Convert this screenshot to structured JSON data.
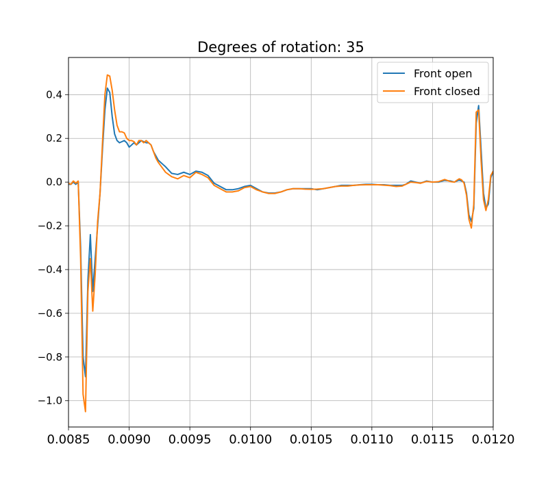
{
  "chart_data": {
    "type": "line",
    "title": "Degrees of rotation: 35",
    "xlabel": "",
    "ylabel": "",
    "xlim": [
      0.0085,
      0.012
    ],
    "ylim": [
      -1.12,
      0.57
    ],
    "grid": true,
    "legend_position": "top-right",
    "x_ticks": [
      0.0085,
      0.009,
      0.0095,
      0.01,
      0.0105,
      0.011,
      0.0115,
      0.012
    ],
    "x_tick_labels": [
      "0.0085",
      "0.0090",
      "0.0095",
      "0.0100",
      "0.0105",
      "0.0110",
      "0.0115",
      "0.0120"
    ],
    "y_ticks": [
      0.4,
      0.2,
      0.0,
      -0.2,
      -0.4,
      -0.6,
      -0.8,
      -1.0
    ],
    "y_tick_labels": [
      "0.4",
      "0.2",
      "0.0",
      "−0.2",
      "−0.4",
      "−0.6",
      "−0.8",
      "−1.0"
    ],
    "series": [
      {
        "name": "Front open",
        "color": "#1f77b4",
        "points": [
          [
            0.0085,
            -0.01
          ],
          [
            0.00852,
            -0.01
          ],
          [
            0.00854,
            0.0
          ],
          [
            0.00856,
            -0.01
          ],
          [
            0.00858,
            0.0
          ],
          [
            0.0086,
            -0.3
          ],
          [
            0.00862,
            -0.8
          ],
          [
            0.00864,
            -0.89
          ],
          [
            0.00866,
            -0.45
          ],
          [
            0.00868,
            -0.24
          ],
          [
            0.0087,
            -0.5
          ],
          [
            0.00872,
            -0.35
          ],
          [
            0.00874,
            -0.2
          ],
          [
            0.00876,
            -0.05
          ],
          [
            0.00878,
            0.15
          ],
          [
            0.0088,
            0.33
          ],
          [
            0.00882,
            0.43
          ],
          [
            0.00884,
            0.41
          ],
          [
            0.00886,
            0.3
          ],
          [
            0.00888,
            0.22
          ],
          [
            0.0089,
            0.19
          ],
          [
            0.00892,
            0.18
          ],
          [
            0.00894,
            0.185
          ],
          [
            0.00896,
            0.19
          ],
          [
            0.00898,
            0.18
          ],
          [
            0.009,
            0.16
          ],
          [
            0.00902,
            0.17
          ],
          [
            0.00904,
            0.18
          ],
          [
            0.00906,
            0.17
          ],
          [
            0.00908,
            0.18
          ],
          [
            0.0091,
            0.19
          ],
          [
            0.00912,
            0.185
          ],
          [
            0.00914,
            0.18
          ],
          [
            0.00916,
            0.18
          ],
          [
            0.00918,
            0.17
          ],
          [
            0.0092,
            0.14
          ],
          [
            0.00922,
            0.12
          ],
          [
            0.00924,
            0.1
          ],
          [
            0.00926,
            0.09
          ],
          [
            0.00928,
            0.08
          ],
          [
            0.0093,
            0.07
          ],
          [
            0.00935,
            0.04
          ],
          [
            0.0094,
            0.035
          ],
          [
            0.00945,
            0.045
          ],
          [
            0.0095,
            0.035
          ],
          [
            0.00955,
            0.05
          ],
          [
            0.0096,
            0.045
          ],
          [
            0.00965,
            0.03
          ],
          [
            0.0097,
            -0.005
          ],
          [
            0.00975,
            -0.02
          ],
          [
            0.0098,
            -0.035
          ],
          [
            0.00985,
            -0.035
          ],
          [
            0.0099,
            -0.03
          ],
          [
            0.00995,
            -0.02
          ],
          [
            0.01,
            -0.015
          ],
          [
            0.01005,
            -0.03
          ],
          [
            0.0101,
            -0.045
          ],
          [
            0.01015,
            -0.05
          ],
          [
            0.0102,
            -0.05
          ],
          [
            0.01025,
            -0.045
          ],
          [
            0.0103,
            -0.035
          ],
          [
            0.01035,
            -0.03
          ],
          [
            0.0104,
            -0.03
          ],
          [
            0.01045,
            -0.03
          ],
          [
            0.0105,
            -0.03
          ],
          [
            0.01055,
            -0.035
          ],
          [
            0.0106,
            -0.03
          ],
          [
            0.01065,
            -0.025
          ],
          [
            0.0107,
            -0.02
          ],
          [
            0.01075,
            -0.015
          ],
          [
            0.0108,
            -0.015
          ],
          [
            0.01085,
            -0.015
          ],
          [
            0.0109,
            -0.012
          ],
          [
            0.01095,
            -0.01
          ],
          [
            0.011,
            -0.01
          ],
          [
            0.01105,
            -0.012
          ],
          [
            0.0111,
            -0.012
          ],
          [
            0.01115,
            -0.015
          ],
          [
            0.0112,
            -0.015
          ],
          [
            0.01125,
            -0.015
          ],
          [
            0.01128,
            -0.01
          ],
          [
            0.01132,
            0.005
          ],
          [
            0.01136,
            0.0
          ],
          [
            0.0114,
            -0.005
          ],
          [
            0.01145,
            0.005
          ],
          [
            0.0115,
            0.0
          ],
          [
            0.01155,
            0.0
          ],
          [
            0.0116,
            0.008
          ],
          [
            0.01165,
            0.005
          ],
          [
            0.01168,
            0.0
          ],
          [
            0.0117,
            0.005
          ],
          [
            0.01172,
            0.01
          ],
          [
            0.01174,
            0.005
          ],
          [
            0.01176,
            0.0
          ],
          [
            0.01178,
            -0.05
          ],
          [
            0.0118,
            -0.15
          ],
          [
            0.01182,
            -0.18
          ],
          [
            0.01184,
            -0.12
          ],
          [
            0.01186,
            0.27
          ],
          [
            0.01188,
            0.35
          ],
          [
            0.0119,
            0.15
          ],
          [
            0.01192,
            -0.05
          ],
          [
            0.01194,
            -0.12
          ],
          [
            0.01196,
            -0.1
          ],
          [
            0.01198,
            0.02
          ],
          [
            0.012,
            0.05
          ]
        ]
      },
      {
        "name": "Front closed",
        "color": "#ff7f0e",
        "points": [
          [
            0.0085,
            -0.005
          ],
          [
            0.00852,
            -0.01
          ],
          [
            0.00854,
            0.005
          ],
          [
            0.00856,
            -0.005
          ],
          [
            0.00858,
            0.005
          ],
          [
            0.0086,
            -0.35
          ],
          [
            0.00862,
            -0.97
          ],
          [
            0.00864,
            -1.05
          ],
          [
            0.00866,
            -0.5
          ],
          [
            0.00868,
            -0.35
          ],
          [
            0.0087,
            -0.59
          ],
          [
            0.00872,
            -0.42
          ],
          [
            0.00874,
            -0.18
          ],
          [
            0.00876,
            -0.05
          ],
          [
            0.00878,
            0.18
          ],
          [
            0.0088,
            0.4
          ],
          [
            0.00882,
            0.49
          ],
          [
            0.00884,
            0.485
          ],
          [
            0.00886,
            0.42
          ],
          [
            0.00888,
            0.33
          ],
          [
            0.0089,
            0.26
          ],
          [
            0.00892,
            0.23
          ],
          [
            0.00894,
            0.23
          ],
          [
            0.00896,
            0.225
          ],
          [
            0.00898,
            0.2
          ],
          [
            0.009,
            0.19
          ],
          [
            0.00902,
            0.19
          ],
          [
            0.00904,
            0.185
          ],
          [
            0.00906,
            0.17
          ],
          [
            0.00908,
            0.19
          ],
          [
            0.0091,
            0.19
          ],
          [
            0.00912,
            0.18
          ],
          [
            0.00914,
            0.19
          ],
          [
            0.00916,
            0.18
          ],
          [
            0.00918,
            0.17
          ],
          [
            0.0092,
            0.14
          ],
          [
            0.00922,
            0.11
          ],
          [
            0.00924,
            0.09
          ],
          [
            0.00926,
            0.075
          ],
          [
            0.00928,
            0.06
          ],
          [
            0.0093,
            0.045
          ],
          [
            0.00935,
            0.025
          ],
          [
            0.0094,
            0.015
          ],
          [
            0.00945,
            0.03
          ],
          [
            0.0095,
            0.02
          ],
          [
            0.00955,
            0.045
          ],
          [
            0.0096,
            0.035
          ],
          [
            0.00965,
            0.02
          ],
          [
            0.0097,
            -0.015
          ],
          [
            0.00975,
            -0.03
          ],
          [
            0.0098,
            -0.045
          ],
          [
            0.00985,
            -0.045
          ],
          [
            0.0099,
            -0.04
          ],
          [
            0.00995,
            -0.025
          ],
          [
            0.01,
            -0.02
          ],
          [
            0.01005,
            -0.035
          ],
          [
            0.0101,
            -0.045
          ],
          [
            0.01015,
            -0.052
          ],
          [
            0.0102,
            -0.052
          ],
          [
            0.01025,
            -0.045
          ],
          [
            0.0103,
            -0.035
          ],
          [
            0.01035,
            -0.03
          ],
          [
            0.0104,
            -0.03
          ],
          [
            0.01045,
            -0.032
          ],
          [
            0.0105,
            -0.033
          ],
          [
            0.01055,
            -0.032
          ],
          [
            0.0106,
            -0.03
          ],
          [
            0.01065,
            -0.025
          ],
          [
            0.0107,
            -0.02
          ],
          [
            0.01075,
            -0.018
          ],
          [
            0.0108,
            -0.018
          ],
          [
            0.01085,
            -0.015
          ],
          [
            0.0109,
            -0.013
          ],
          [
            0.01095,
            -0.012
          ],
          [
            0.011,
            -0.012
          ],
          [
            0.01105,
            -0.012
          ],
          [
            0.0111,
            -0.014
          ],
          [
            0.01115,
            -0.016
          ],
          [
            0.0112,
            -0.02
          ],
          [
            0.01125,
            -0.018
          ],
          [
            0.01128,
            -0.01
          ],
          [
            0.01132,
            0.0
          ],
          [
            0.01136,
            -0.002
          ],
          [
            0.0114,
            -0.005
          ],
          [
            0.01145,
            0.003
          ],
          [
            0.0115,
            0.0
          ],
          [
            0.01155,
            0.002
          ],
          [
            0.0116,
            0.012
          ],
          [
            0.01165,
            0.002
          ],
          [
            0.01168,
            0.0
          ],
          [
            0.0117,
            0.008
          ],
          [
            0.01172,
            0.015
          ],
          [
            0.01174,
            0.01
          ],
          [
            0.01176,
            -0.005
          ],
          [
            0.01178,
            -0.06
          ],
          [
            0.0118,
            -0.17
          ],
          [
            0.01182,
            -0.21
          ],
          [
            0.01184,
            -0.1
          ],
          [
            0.01186,
            0.32
          ],
          [
            0.01188,
            0.33
          ],
          [
            0.0119,
            0.1
          ],
          [
            0.01192,
            -0.08
          ],
          [
            0.01194,
            -0.13
          ],
          [
            0.01196,
            -0.08
          ],
          [
            0.01198,
            0.03
          ],
          [
            0.012,
            0.05
          ]
        ]
      }
    ]
  }
}
